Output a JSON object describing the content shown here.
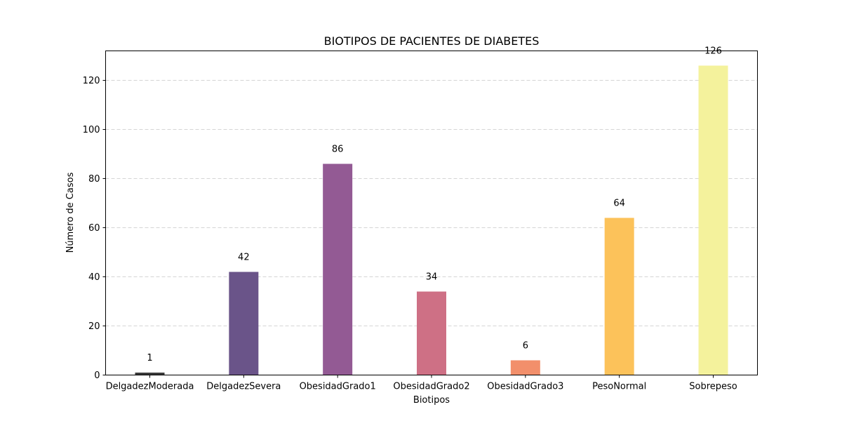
{
  "chart_data": {
    "type": "bar",
    "title": "BIOTIPOS DE PACIENTES DE DIABETES",
    "xlabel": "Biotipos",
    "ylabel": "Número de Casos",
    "categories": [
      "DelgadezModerada",
      "DelgadezSevera",
      "ObesidadGrado1",
      "ObesidadGrado2",
      "ObesidadGrado3",
      "PesoNormal",
      "Sobrepeso"
    ],
    "values": [
      1,
      42,
      86,
      34,
      6,
      64,
      126
    ],
    "colors": [
      "#3b3b3b",
      "#6a5489",
      "#935a94",
      "#ce7085",
      "#f28f6b",
      "#fcc25a",
      "#f4f29c"
    ],
    "ylim": [
      0,
      132
    ],
    "yticks": [
      0,
      20,
      40,
      60,
      80,
      100,
      120
    ],
    "grid": "y-dashed",
    "legend": "none"
  }
}
